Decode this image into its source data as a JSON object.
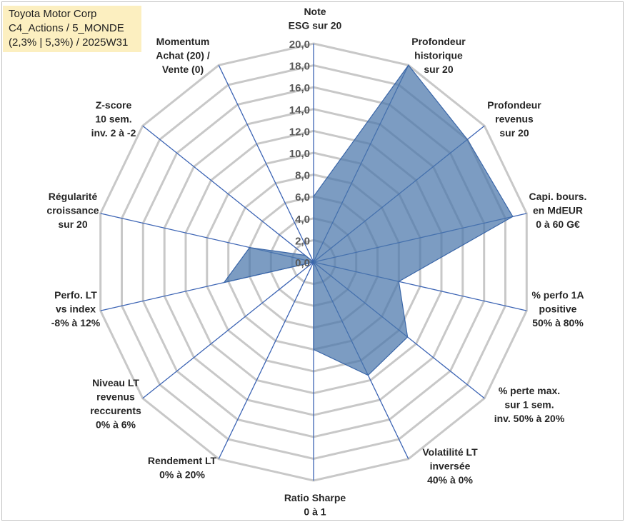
{
  "header": {
    "lines": [
      "Toyota Motor Corp",
      "C4_Actions / 5_MONDE",
      "(2,3% | 5,3%) / 2025W31"
    ]
  },
  "chart_data": {
    "type": "radar",
    "rmin": 0,
    "rmax": 20,
    "ticks": [
      "0,0",
      "2,0",
      "4,0",
      "6,0",
      "8,0",
      "10,0",
      "12,0",
      "14,0",
      "16,0",
      "18,0",
      "20,0"
    ],
    "categories": [
      [
        "Note",
        "ESG sur 20"
      ],
      [
        "Profondeur",
        "historique",
        "sur 20"
      ],
      [
        "Profondeur",
        "revenus",
        "sur 20"
      ],
      [
        "Capi. bours.",
        "en MdEUR",
        "0 à 60 G€"
      ],
      [
        "% perfo 1A",
        "positive",
        "50% à 80%"
      ],
      [
        "% perte max.",
        "sur 1 sem.",
        "inv. 50% à 20%"
      ],
      [
        "Volatilité LT",
        "inversée",
        "40% à 0%"
      ],
      [
        "Ratio Sharpe",
        "0 à 1"
      ],
      [
        "Rendement LT",
        "0% à 20%"
      ],
      [
        "Niveau LT",
        "revenus",
        "reccurents",
        "0% à 6%"
      ],
      [
        "Perfo. LT",
        "vs index",
        "-8% à 12%"
      ],
      [
        "Régularité",
        "croissance",
        "sur 20"
      ],
      [
        "Z-score",
        "10 sem.",
        "inv. 2 à -2"
      ],
      [
        "Momentum",
        "Achat (20) /",
        "Vente (0)"
      ]
    ],
    "values": [
      6.0,
      20.0,
      18.0,
      18.7,
      8.0,
      11.0,
      11.5,
      8.0,
      0.0,
      0.0,
      8.4,
      6.0,
      1.0,
      0.0
    ],
    "colors": {
      "area": "#4a76ab",
      "spoke": "#3c64b4",
      "grid": "#c8c8c8",
      "title_bg": "#fcefc0"
    },
    "grid": true,
    "legend": "none"
  }
}
